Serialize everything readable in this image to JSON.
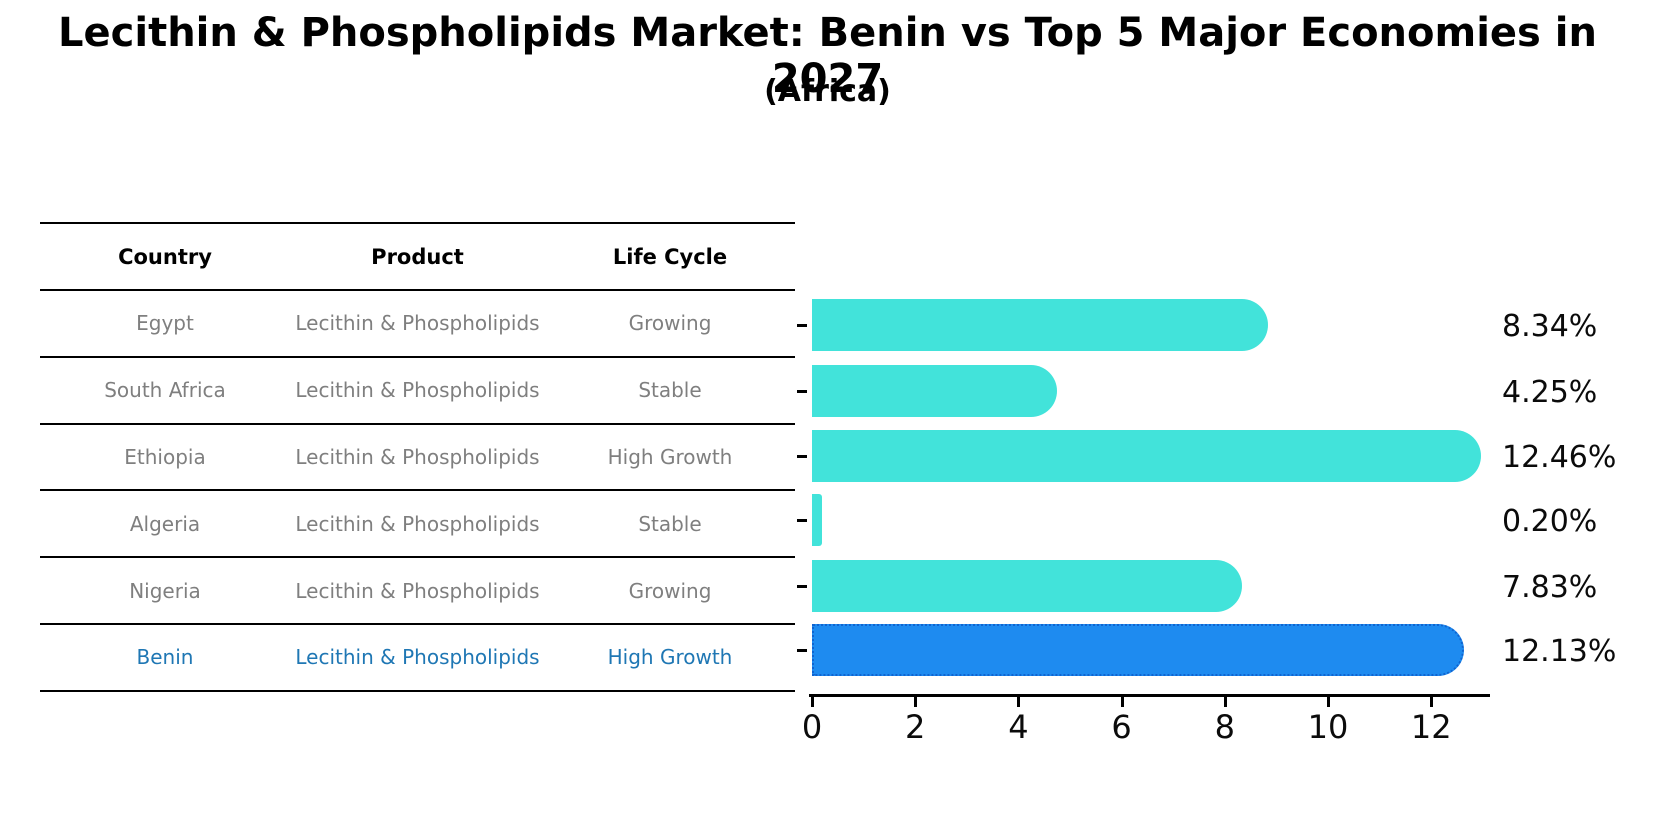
{
  "title": "Lecithin & Phospholipids Market: Benin vs Top 5 Major Economies in 2027",
  "subtitle": "(Africa)",
  "table": {
    "headers": {
      "country": "Country",
      "product": "Product",
      "life_cycle": "Life Cycle"
    },
    "rows": [
      {
        "country": "Egypt",
        "product": "Lecithin & Phospholipids",
        "life_cycle": "Growing",
        "highlight": false
      },
      {
        "country": "South Africa",
        "product": "Lecithin & Phospholipids",
        "life_cycle": "Stable",
        "highlight": false
      },
      {
        "country": "Ethiopia",
        "product": "Lecithin & Phospholipids",
        "life_cycle": "High Growth",
        "highlight": false
      },
      {
        "country": "Algeria",
        "product": "Lecithin & Phospholipids",
        "life_cycle": "Stable",
        "highlight": false
      },
      {
        "country": "Nigeria",
        "product": "Lecithin & Phospholipids",
        "life_cycle": "Growing",
        "highlight": false
      },
      {
        "country": "Benin",
        "product": "Lecithin & Phospholipids",
        "life_cycle": "High Growth",
        "highlight": true
      }
    ]
  },
  "chart_data": {
    "type": "bar",
    "orientation": "horizontal",
    "title": "Lecithin & Phospholipids Market: Benin vs Top 5 Major Economies in 2027",
    "subtitle": "(Africa)",
    "categories": [
      "Egypt",
      "South Africa",
      "Ethiopia",
      "Algeria",
      "Nigeria",
      "Benin"
    ],
    "values": [
      8.34,
      4.25,
      12.46,
      0.2,
      7.83,
      12.13
    ],
    "labels": [
      "8.34%",
      "4.25%",
      "12.46%",
      "0.20%",
      "7.83%",
      "12.13%"
    ],
    "x_ticks": [
      0,
      2,
      4,
      6,
      8,
      10,
      12
    ],
    "xlim": [
      0,
      13.1
    ],
    "grid": false,
    "legend": "none",
    "bar_color": "#42e3da",
    "highlight_color": "#1e8bf0",
    "highlight_edge_color": "#1064d0",
    "highlight_index": 5,
    "highlight_text_color": "#1f77b4"
  }
}
